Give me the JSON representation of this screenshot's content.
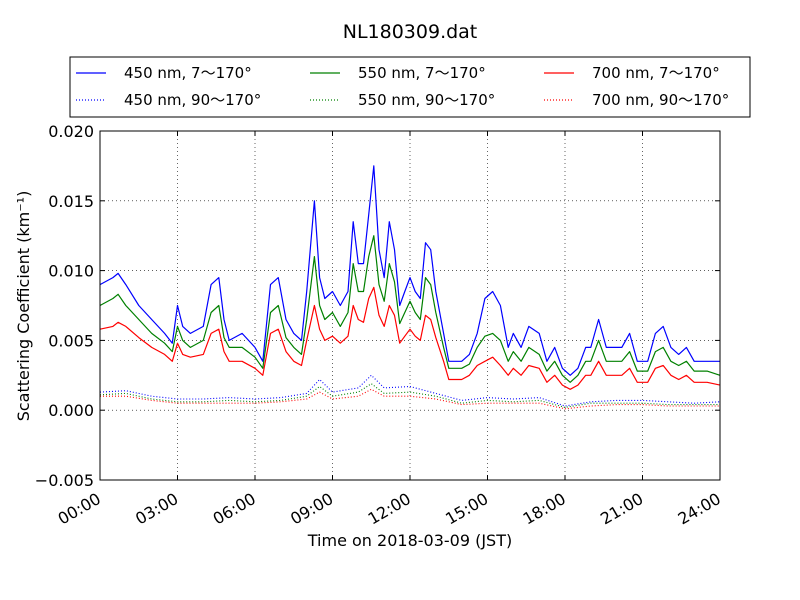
{
  "chart_data": {
    "type": "line",
    "title": "NL180309.dat",
    "xlabel": "Time on 2018-03-09 (JST)",
    "ylabel": "Scattering Coefficient (km⁻¹)",
    "xlim": [
      0,
      24
    ],
    "ylim": [
      -0.005,
      0.02
    ],
    "xticks": [
      0,
      3,
      6,
      9,
      12,
      15,
      18,
      21,
      24
    ],
    "xtick_labels": [
      "00:00",
      "03:00",
      "06:00",
      "09:00",
      "12:00",
      "15:00",
      "18:00",
      "21:00",
      "24:00"
    ],
    "yticks": [
      -0.005,
      0,
      0.005,
      0.01,
      0.015,
      0.02
    ],
    "ytick_labels": [
      "−0.005",
      "0.000",
      "0.005",
      "0.010",
      "0.015",
      "0.020"
    ],
    "grid": true,
    "legend_position": "top, above plot, 3 columns",
    "series": [
      {
        "name": "450 nm, 7～170°",
        "color": "#0000ff",
        "style": "solid",
        "x": [
          0,
          0.5,
          0.7,
          1,
          1.5,
          2,
          2.5,
          2.8,
          3,
          3.2,
          3.5,
          4,
          4.3,
          4.6,
          4.8,
          5,
          5.5,
          6,
          6.3,
          6.6,
          6.9,
          7.2,
          7.5,
          7.8,
          8,
          8.3,
          8.5,
          8.7,
          9,
          9.3,
          9.6,
          9.8,
          10,
          10.2,
          10.4,
          10.6,
          10.8,
          11,
          11.2,
          11.4,
          11.6,
          11.8,
          12,
          12.2,
          12.4,
          12.6,
          12.8,
          13,
          13.3,
          13.5,
          13.8,
          14,
          14.3,
          14.6,
          14.9,
          15.2,
          15.5,
          15.8,
          16,
          16.3,
          16.6,
          17,
          17.3,
          17.6,
          17.9,
          18.2,
          18.5,
          18.8,
          19,
          19.3,
          19.6,
          19.9,
          20.2,
          20.5,
          20.8,
          21,
          21.2,
          21.5,
          21.8,
          22.1,
          22.4,
          22.7,
          23,
          23.5,
          24
        ],
        "y": [
          0.009,
          0.0095,
          0.0098,
          0.009,
          0.0075,
          0.0065,
          0.0055,
          0.0048,
          0.0075,
          0.006,
          0.0055,
          0.006,
          0.009,
          0.0095,
          0.0065,
          0.005,
          0.0055,
          0.0045,
          0.0035,
          0.009,
          0.0095,
          0.0065,
          0.0055,
          0.005,
          0.0085,
          0.015,
          0.0095,
          0.008,
          0.0085,
          0.0075,
          0.0085,
          0.0135,
          0.0105,
          0.0105,
          0.014,
          0.0175,
          0.0115,
          0.0095,
          0.0135,
          0.0115,
          0.0075,
          0.0085,
          0.0095,
          0.0085,
          0.008,
          0.012,
          0.0115,
          0.0085,
          0.0055,
          0.0035,
          0.0035,
          0.0035,
          0.004,
          0.0055,
          0.008,
          0.0085,
          0.0075,
          0.0045,
          0.0055,
          0.0045,
          0.006,
          0.0055,
          0.0035,
          0.0045,
          0.003,
          0.0025,
          0.003,
          0.0045,
          0.0045,
          0.0065,
          0.0045,
          0.0045,
          0.0045,
          0.0055,
          0.0035,
          0.0035,
          0.0035,
          0.0055,
          0.006,
          0.0045,
          0.004,
          0.0045,
          0.0035,
          0.0035,
          0.0035
        ]
      },
      {
        "name": "550 nm, 7～170°",
        "color": "#008000",
        "style": "solid",
        "x": [
          0,
          0.5,
          0.7,
          1,
          1.5,
          2,
          2.5,
          2.8,
          3,
          3.2,
          3.5,
          4,
          4.3,
          4.6,
          4.8,
          5,
          5.5,
          6,
          6.3,
          6.6,
          6.9,
          7.2,
          7.5,
          7.8,
          8,
          8.3,
          8.5,
          8.7,
          9,
          9.3,
          9.6,
          9.8,
          10,
          10.2,
          10.4,
          10.6,
          10.8,
          11,
          11.2,
          11.4,
          11.6,
          11.8,
          12,
          12.2,
          12.4,
          12.6,
          12.8,
          13,
          13.3,
          13.5,
          13.8,
          14,
          14.3,
          14.6,
          14.9,
          15.2,
          15.5,
          15.8,
          16,
          16.3,
          16.6,
          17,
          17.3,
          17.6,
          17.9,
          18.2,
          18.5,
          18.8,
          19,
          19.3,
          19.6,
          19.9,
          20.2,
          20.5,
          20.8,
          21,
          21.2,
          21.5,
          21.8,
          22.1,
          22.4,
          22.7,
          23,
          23.5,
          24
        ],
        "y": [
          0.0075,
          0.008,
          0.0083,
          0.0075,
          0.0065,
          0.0055,
          0.0048,
          0.0042,
          0.006,
          0.005,
          0.0045,
          0.005,
          0.007,
          0.0075,
          0.0052,
          0.0045,
          0.0045,
          0.0038,
          0.003,
          0.007,
          0.0075,
          0.0052,
          0.0045,
          0.004,
          0.0065,
          0.011,
          0.0075,
          0.0065,
          0.007,
          0.006,
          0.007,
          0.0105,
          0.0085,
          0.0085,
          0.011,
          0.0125,
          0.009,
          0.0078,
          0.0105,
          0.0092,
          0.0062,
          0.007,
          0.0078,
          0.007,
          0.0065,
          0.0095,
          0.009,
          0.007,
          0.0045,
          0.003,
          0.003,
          0.003,
          0.0033,
          0.0045,
          0.0053,
          0.0055,
          0.005,
          0.0035,
          0.0042,
          0.0035,
          0.0045,
          0.004,
          0.0028,
          0.0035,
          0.0025,
          0.002,
          0.0025,
          0.0035,
          0.0035,
          0.005,
          0.0035,
          0.0035,
          0.0035,
          0.0042,
          0.0028,
          0.0028,
          0.0028,
          0.0042,
          0.0045,
          0.0035,
          0.0032,
          0.0035,
          0.0028,
          0.0028,
          0.0025
        ]
      },
      {
        "name": "700 nm, 7～170°",
        "color": "#ff0000",
        "style": "solid",
        "x": [
          0,
          0.5,
          0.7,
          1,
          1.5,
          2,
          2.5,
          2.8,
          3,
          3.2,
          3.5,
          4,
          4.3,
          4.6,
          4.8,
          5,
          5.5,
          6,
          6.3,
          6.6,
          6.9,
          7.2,
          7.5,
          7.8,
          8,
          8.3,
          8.5,
          8.7,
          9,
          9.3,
          9.6,
          9.8,
          10,
          10.2,
          10.4,
          10.6,
          10.8,
          11,
          11.2,
          11.4,
          11.6,
          11.8,
          12,
          12.2,
          12.4,
          12.6,
          12.8,
          13,
          13.3,
          13.5,
          13.8,
          14,
          14.3,
          14.6,
          14.9,
          15.2,
          15.5,
          15.8,
          16,
          16.3,
          16.6,
          17,
          17.3,
          17.6,
          17.9,
          18.2,
          18.5,
          18.8,
          19,
          19.3,
          19.6,
          19.9,
          20.2,
          20.5,
          20.8,
          21,
          21.2,
          21.5,
          21.8,
          22.1,
          22.4,
          22.7,
          23,
          23.5,
          24
        ],
        "y": [
          0.0058,
          0.006,
          0.0063,
          0.006,
          0.0052,
          0.0045,
          0.004,
          0.0035,
          0.0048,
          0.004,
          0.0038,
          0.004,
          0.0055,
          0.0058,
          0.0042,
          0.0035,
          0.0035,
          0.003,
          0.0025,
          0.0055,
          0.0058,
          0.0042,
          0.0035,
          0.0032,
          0.005,
          0.0075,
          0.0058,
          0.005,
          0.0053,
          0.0048,
          0.0053,
          0.0075,
          0.0065,
          0.0063,
          0.008,
          0.0088,
          0.0068,
          0.006,
          0.0075,
          0.0068,
          0.0048,
          0.0053,
          0.0058,
          0.0053,
          0.005,
          0.0068,
          0.0065,
          0.0052,
          0.0035,
          0.0022,
          0.0022,
          0.0022,
          0.0025,
          0.0032,
          0.0035,
          0.0038,
          0.0032,
          0.0025,
          0.003,
          0.0025,
          0.0032,
          0.003,
          0.002,
          0.0025,
          0.0018,
          0.0015,
          0.0018,
          0.0025,
          0.0025,
          0.0035,
          0.0025,
          0.0025,
          0.0025,
          0.003,
          0.002,
          0.002,
          0.002,
          0.003,
          0.0032,
          0.0025,
          0.0022,
          0.0025,
          0.002,
          0.002,
          0.0018
        ]
      },
      {
        "name": "450 nm, 90～170°",
        "color": "#0000ff",
        "style": "dotted",
        "x": [
          0,
          1,
          2,
          3,
          4,
          5,
          6,
          7,
          8,
          8.5,
          9,
          10,
          10.5,
          11,
          12,
          13,
          14,
          15,
          16,
          17,
          18,
          19,
          20,
          21,
          22,
          23,
          24
        ],
        "y": [
          0.0013,
          0.0014,
          0.001,
          0.0008,
          0.0008,
          0.0009,
          0.0008,
          0.0009,
          0.0012,
          0.0022,
          0.0013,
          0.0016,
          0.0025,
          0.0016,
          0.0017,
          0.0012,
          0.0007,
          0.0009,
          0.0008,
          0.0009,
          0.0003,
          0.0006,
          0.0007,
          0.0007,
          0.0006,
          0.0005,
          0.0006
        ]
      },
      {
        "name": "550 nm, 90～170°",
        "color": "#008000",
        "style": "dotted",
        "x": [
          0,
          1,
          2,
          3,
          4,
          5,
          6,
          7,
          8,
          8.5,
          9,
          10,
          10.5,
          11,
          12,
          13,
          14,
          15,
          16,
          17,
          18,
          19,
          20,
          21,
          22,
          23,
          24
        ],
        "y": [
          0.0011,
          0.0012,
          0.0008,
          0.0006,
          0.0006,
          0.0007,
          0.0006,
          0.0007,
          0.001,
          0.0017,
          0.001,
          0.0013,
          0.0019,
          0.0012,
          0.0013,
          0.001,
          0.0005,
          0.0007,
          0.0006,
          0.0007,
          0.0002,
          0.0005,
          0.0005,
          0.0005,
          0.0004,
          0.0004,
          0.0004
        ]
      },
      {
        "name": "700 nm, 90～170°",
        "color": "#ff0000",
        "style": "dotted",
        "x": [
          0,
          1,
          2,
          3,
          4,
          5,
          6,
          7,
          8,
          8.5,
          9,
          10,
          10.5,
          11,
          12,
          13,
          14,
          15,
          16,
          17,
          18,
          19,
          20,
          21,
          22,
          23,
          24
        ],
        "y": [
          0.001,
          0.001,
          0.0007,
          0.0005,
          0.0005,
          0.0005,
          0.0005,
          0.0006,
          0.0008,
          0.0013,
          0.0008,
          0.001,
          0.0015,
          0.001,
          0.001,
          0.0008,
          0.0004,
          0.0005,
          0.0005,
          0.0005,
          0.0001,
          0.0003,
          0.0004,
          0.0004,
          0.0003,
          0.0003,
          0.0003
        ]
      }
    ],
    "legend_order": [
      0,
      3,
      1,
      4,
      2,
      5
    ]
  }
}
